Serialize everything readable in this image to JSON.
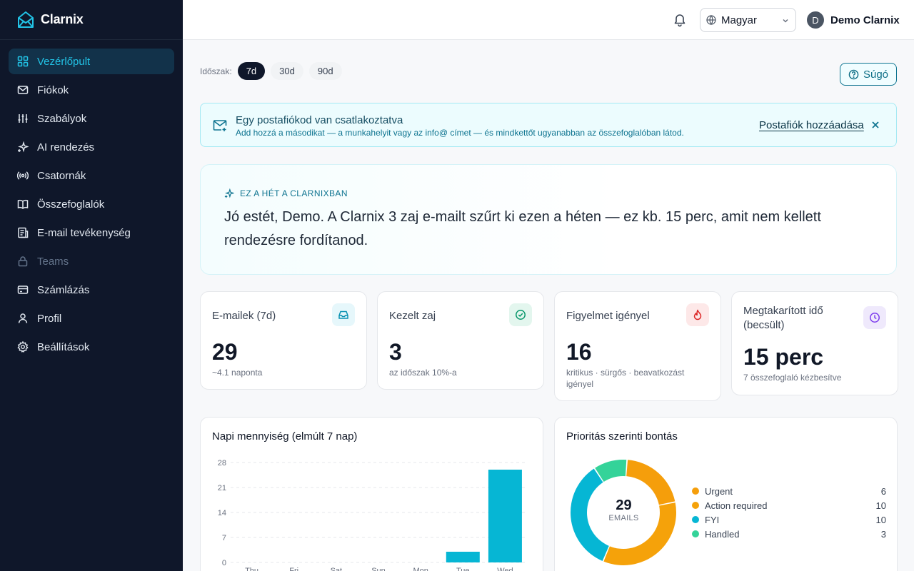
{
  "app": {
    "name": "Clarnix"
  },
  "sidebar": {
    "items": [
      {
        "label": "Vezérlőpult",
        "icon": "dashboard-icon",
        "state": "active"
      },
      {
        "label": "Fiókok",
        "icon": "mail-icon",
        "state": "normal"
      },
      {
        "label": "Szabályok",
        "icon": "sliders-icon",
        "state": "normal"
      },
      {
        "label": "AI rendezés",
        "icon": "sparkles-icon",
        "state": "normal"
      },
      {
        "label": "Csatornák",
        "icon": "broadcast-icon",
        "state": "normal"
      },
      {
        "label": "Összefoglalók",
        "icon": "book-icon",
        "state": "normal"
      },
      {
        "label": "E-mail tevékenység",
        "icon": "activity-log-icon",
        "state": "normal"
      },
      {
        "label": "Teams",
        "icon": "lock-icon",
        "state": "disabled"
      },
      {
        "label": "Számlázás",
        "icon": "wallet-icon",
        "state": "normal"
      },
      {
        "label": "Profil",
        "icon": "user-icon",
        "state": "normal"
      },
      {
        "label": "Beállítások",
        "icon": "gear-icon",
        "state": "normal"
      }
    ]
  },
  "topbar": {
    "language": "Magyar",
    "user_initial": "D",
    "user_name": "Demo Clarnix"
  },
  "period": {
    "label": "Időszak:",
    "options": [
      "7d",
      "30d",
      "90d"
    ],
    "selected": "7d"
  },
  "help": {
    "label": "Súgó"
  },
  "banner": {
    "title": "Egy postafiókod van csatlakoztatva",
    "subtitle": "Add hozzá a másodikat — a munkahelyit vagy az info@ címet — és mindkettőt ugyanabban az összefoglalóban látod.",
    "link": "Postafiók hozzáadása"
  },
  "hero": {
    "kicker": "EZ A HÉT A CLARNIXBAN",
    "text": "Jó estét, Demo. A Clarnix 3 zaj e-mailt szűrt ki ezen a héten — ez kb. 15 perc, amit nem kellett rendezésre fordítanod."
  },
  "stats": [
    {
      "title": "E-mailek (7d)",
      "value": "29",
      "sub": "~4.1 naponta",
      "icon": "inbox-icon",
      "color": "#0891b2",
      "bg": "#e6f7fb"
    },
    {
      "title": "Kezelt zaj",
      "value": "3",
      "sub": "az időszak 10%-a",
      "icon": "check-circle-icon",
      "color": "#059669",
      "bg": "#e3f6ee"
    },
    {
      "title": "Figyelmet igényel",
      "value": "16",
      "sub": "kritikus · sürgős · beavatkozást igényel",
      "icon": "flame-icon",
      "color": "#dc2626",
      "bg": "#fde8e8"
    },
    {
      "title": "Megtakarított idő (becsült)",
      "value": "15 perc",
      "sub": "7 összefoglaló kézbesítve",
      "icon": "clock-icon",
      "color": "#7c3aed",
      "bg": "#efe9fc"
    }
  ],
  "volume_card": {
    "title": "Napi mennyiség (elmúlt 7 nap)"
  },
  "priority_card": {
    "title": "Prioritás szerinti bontás",
    "total": "29",
    "total_label": "EMAILS"
  },
  "colors": {
    "accent": "#22c3e6",
    "bar": "#06b6d4",
    "urgent": "#f59e0b",
    "action": "#f5a20a",
    "fyi": "#06b6d4",
    "handled": "#34d399"
  },
  "chart_data": [
    {
      "type": "bar",
      "title": "Napi mennyiség (elmúlt 7 nap)",
      "categories": [
        "Thu",
        "Fri",
        "Sat",
        "Sun",
        "Mon",
        "Tue",
        "Wed"
      ],
      "values": [
        0,
        0,
        0,
        0,
        0,
        3,
        26
      ],
      "yticks": [
        0,
        7,
        14,
        21,
        28
      ],
      "ylim": [
        0,
        28
      ],
      "grid": true
    },
    {
      "type": "pie",
      "title": "Prioritás szerinti bontás",
      "series": [
        {
          "name": "Urgent",
          "value": 6
        },
        {
          "name": "Action required",
          "value": 10
        },
        {
          "name": "FYI",
          "value": 10
        },
        {
          "name": "Handled",
          "value": 3
        }
      ],
      "legend": "right"
    }
  ]
}
